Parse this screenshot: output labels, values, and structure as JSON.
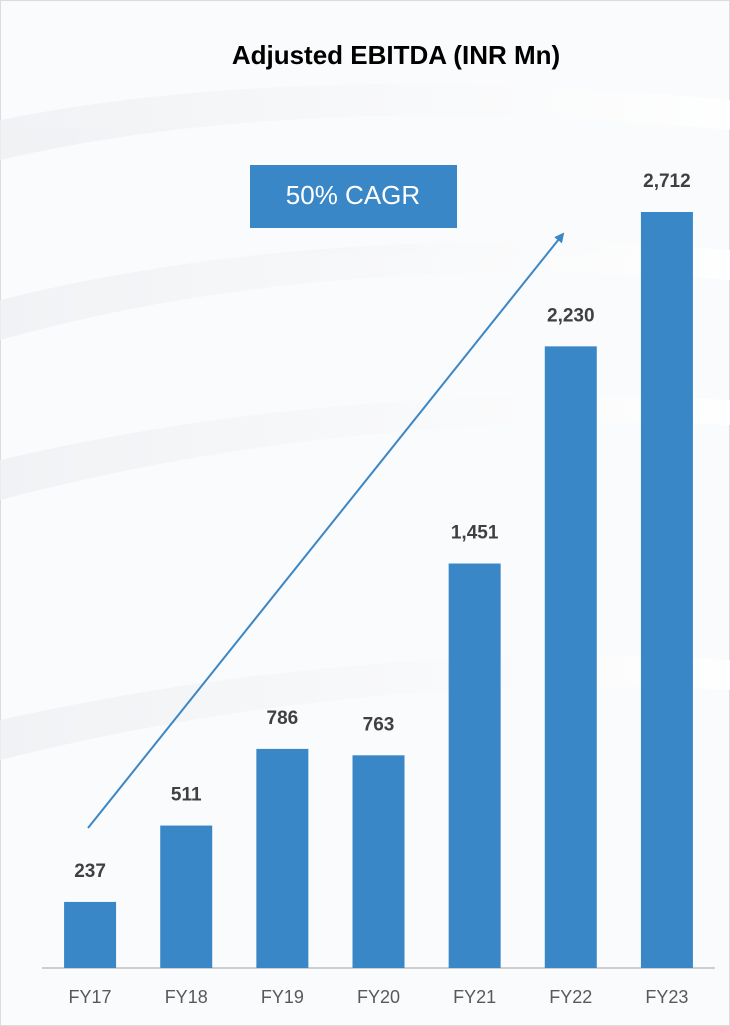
{
  "chart_data": {
    "type": "bar",
    "title": "Adjusted EBITDA (INR Mn)",
    "categories": [
      "FY17",
      "FY18",
      "FY19",
      "FY20",
      "FY21",
      "FY22",
      "FY23"
    ],
    "values": [
      237,
      511,
      786,
      763,
      1451,
      2230,
      2712
    ],
    "value_labels": [
      "237",
      "511",
      "786",
      "763",
      "1,451",
      "2,230",
      "2,712"
    ],
    "color": "#3a87c8",
    "annotation": "50% CAGR"
  }
}
